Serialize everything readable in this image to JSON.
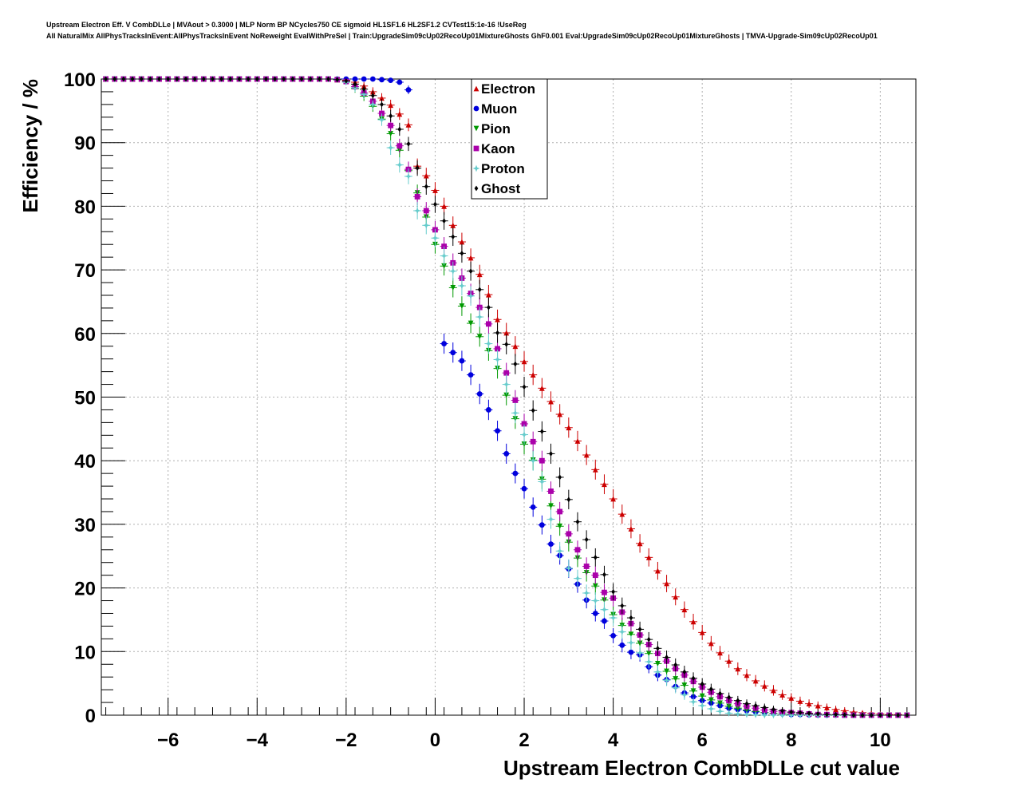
{
  "header": {
    "title_line1": "Upstream Electron Eff. V CombDLLe | MVAout > 0.3000 | MLP Norm BP NCycles750 CE sigmoid HL1SF1.6 HL2SF1.2 CVTest15:1e-16 !UseReg",
    "title_line2": "All NaturalMix AllPhysTracksInEvent:AllPhysTracksInEvent NoReweight EvalWithPreSel | Train:UpgradeSim09cUp02RecoUp01MixtureGhosts GhF0.001 Eval:UpgradeSim09cUp02RecoUp01MixtureGhosts | TMVA-Upgrade-Sim09cUp02RecoUp01"
  },
  "chart_data": {
    "type": "scatter",
    "title": "Upstream Electron Eff. V CombDLLe | MVAout > 0.3000 | MLP Norm BP NCycles750 CE sigmoid HL1SF1.6 HL2SF1.2 CVTest15:1e-16 !UseReg",
    "xlabel": "Upstream Electron CombDLLe cut value",
    "ylabel": "Efficiency / %",
    "xlim": [
      -7.5,
      10.8
    ],
    "ylim": [
      0,
      100
    ],
    "xticks": [
      -6,
      -4,
      -2,
      0,
      2,
      4,
      6,
      8,
      10
    ],
    "xtick_labels": [
      "−6",
      "−4",
      "−2",
      "0",
      "2",
      "4",
      "6",
      "8",
      "10"
    ],
    "yticks": [
      0,
      10,
      20,
      30,
      40,
      50,
      60,
      70,
      80,
      90,
      100
    ],
    "yscale": "linear",
    "grid": true,
    "legend_position": "top-center",
    "x": [
      -7.4,
      -7.2,
      -7.0,
      -6.8,
      -6.6,
      -6.4,
      -6.2,
      -6.0,
      -5.8,
      -5.6,
      -5.4,
      -5.2,
      -5.0,
      -4.8,
      -4.6,
      -4.4,
      -4.2,
      -4.0,
      -3.8,
      -3.6,
      -3.4,
      -3.2,
      -3.0,
      -2.8,
      -2.6,
      -2.4,
      -2.2,
      -2.0,
      -1.8,
      -1.6,
      -1.4,
      -1.2,
      -1.0,
      -0.8,
      -0.6,
      -0.4,
      -0.2,
      0.0,
      0.2,
      0.4,
      0.6,
      0.8,
      1.0,
      1.2,
      1.4,
      1.6,
      1.8,
      2.0,
      2.2,
      2.4,
      2.6,
      2.8,
      3.0,
      3.2,
      3.4,
      3.6,
      3.8,
      4.0,
      4.2,
      4.4,
      4.6,
      4.8,
      5.0,
      5.2,
      5.4,
      5.6,
      5.8,
      6.0,
      6.2,
      6.4,
      6.6,
      6.8,
      7.0,
      7.2,
      7.4,
      7.6,
      7.8,
      8.0,
      8.2,
      8.4,
      8.6,
      8.8,
      9.0,
      9.2,
      9.4,
      9.6,
      9.8,
      10.0,
      10.2,
      10.4,
      10.6
    ],
    "series": [
      {
        "name": "Electron",
        "color": "#cc0000",
        "marker": "triangle-up",
        "values": [
          100,
          100,
          100,
          100,
          100,
          100,
          100,
          100,
          100,
          100,
          100,
          100,
          100,
          100,
          100,
          100,
          100,
          100,
          100,
          100,
          100,
          100,
          100,
          100,
          100,
          100,
          99.9,
          99.8,
          99.5,
          98.9,
          98.0,
          97.0,
          95.9,
          94.5,
          92.8,
          86.3,
          84.8,
          82.5,
          80.0,
          77.0,
          74.4,
          71.9,
          69.3,
          66.1,
          62.2,
          60.1,
          58.0,
          55.6,
          53.5,
          51.4,
          49.3,
          47.3,
          45.2,
          43.1,
          40.9,
          38.6,
          36.3,
          34.0,
          31.6,
          29.3,
          27.0,
          24.8,
          22.7,
          20.7,
          18.6,
          16.6,
          14.7,
          13.0,
          11.3,
          9.8,
          8.5,
          7.3,
          6.3,
          5.4,
          4.6,
          3.9,
          3.2,
          2.7,
          2.2,
          1.8,
          1.5,
          1.2,
          0.9,
          0.7,
          0.5,
          0.4,
          0.3,
          0.2,
          0.1,
          0.1,
          0.0
        ]
      },
      {
        "name": "Muon",
        "color": "#0000dd",
        "marker": "circle",
        "values": [
          100,
          100,
          100,
          100,
          100,
          100,
          100,
          100,
          100,
          100,
          100,
          100,
          100,
          100,
          100,
          100,
          100,
          100,
          100,
          100,
          100,
          100,
          100,
          100,
          100,
          100,
          100,
          100,
          100,
          100,
          100,
          99.9,
          99.8,
          99.5,
          98.3,
          null,
          null,
          null,
          58.4,
          57.0,
          55.7,
          53.5,
          50.5,
          48.0,
          44.7,
          41.1,
          38.0,
          35.6,
          32.7,
          29.9,
          26.9,
          25.1,
          23.0,
          20.6,
          18.1,
          16.0,
          14.8,
          12.5,
          11.0,
          9.9,
          9.5,
          7.6,
          6.3,
          5.6,
          4.5,
          3.5,
          2.9,
          2.3,
          1.9,
          1.5,
          1.1,
          0.9,
          0.7,
          0.5,
          0.4,
          0.3,
          0.2,
          0.1,
          0.1,
          0.05,
          0.0,
          0.0,
          0.0,
          0.0,
          0.0,
          0.0,
          0.0,
          0.0,
          0.0,
          0.0,
          0.0
        ]
      },
      {
        "name": "Pion",
        "color": "#009900",
        "marker": "triangle-down",
        "values": [
          100,
          100,
          100,
          100,
          100,
          100,
          100,
          100,
          100,
          100,
          100,
          100,
          100,
          100,
          100,
          100,
          100,
          100,
          100,
          100,
          100,
          100,
          100,
          100,
          100,
          100,
          99.9,
          99.5,
          98.5,
          97.3,
          95.7,
          93.7,
          91.4,
          88.8,
          85.6,
          82.1,
          78.3,
          74.0,
          70.6,
          67.2,
          64.3,
          61.6,
          59.5,
          57.3,
          54.5,
          50.3,
          46.6,
          42.6,
          40.1,
          37.1,
          32.9,
          29.7,
          27.2,
          24.7,
          22.4,
          20.3,
          18.1,
          15.8,
          14.1,
          12.7,
          11.3,
          9.7,
          8.1,
          6.9,
          5.7,
          4.7,
          3.8,
          3.0,
          2.4,
          1.9,
          1.4,
          1.1,
          0.8,
          0.6,
          0.4,
          0.3,
          0.2,
          0.15,
          0.1,
          0.05,
          0.0,
          0.0,
          0.0,
          0.0,
          0.0,
          0.0,
          0.0,
          0.0,
          0.0,
          0.0,
          0.0
        ]
      },
      {
        "name": "Kaon",
        "color": "#aa00aa",
        "marker": "square",
        "values": [
          100,
          100,
          100,
          100,
          100,
          100,
          100,
          100,
          100,
          100,
          100,
          100,
          100,
          100,
          100,
          100,
          100,
          100,
          100,
          100,
          100,
          100,
          100,
          100,
          100,
          100,
          99.9,
          99.6,
          98.8,
          97.8,
          96.5,
          94.6,
          92.7,
          89.5,
          85.8,
          81.5,
          79.3,
          76.3,
          73.7,
          71.1,
          68.7,
          66.3,
          64.1,
          61.5,
          57.6,
          53.8,
          49.5,
          45.8,
          43.0,
          40.0,
          35.2,
          32.0,
          28.5,
          26.0,
          23.4,
          22.0,
          19.3,
          18.4,
          16.2,
          14.4,
          12.6,
          11.1,
          9.7,
          8.5,
          7.3,
          6.3,
          5.3,
          4.4,
          3.6,
          2.9,
          2.3,
          1.8,
          1.4,
          1.1,
          0.8,
          0.6,
          0.5,
          0.4,
          0.3,
          0.2,
          0.1,
          0.1,
          0.05,
          0.0,
          0.0,
          0.0,
          0.0,
          0.0,
          0.0,
          0.0,
          0.0
        ]
      },
      {
        "name": "Proton",
        "color": "#66cccc",
        "marker": "star",
        "values": [
          100,
          100,
          100,
          100,
          100,
          100,
          100,
          100,
          100,
          100,
          100,
          100,
          100,
          100,
          100,
          100,
          100,
          100,
          100,
          100,
          100,
          100,
          100,
          100,
          100,
          100,
          99.9,
          99.5,
          98.6,
          97.6,
          96.0,
          93.6,
          89.2,
          86.5,
          84.7,
          79.3,
          77.0,
          75.0,
          72.2,
          69.8,
          67.5,
          65.9,
          62.6,
          58.4,
          55.9,
          52.0,
          47.5,
          44.1,
          40.0,
          36.7,
          30.8,
          25.8,
          23.1,
          21.5,
          19.2,
          18.0,
          16.6,
          15.3,
          13.1,
          11.4,
          9.8,
          8.4,
          6.8,
          5.5,
          4.3,
          3.2,
          2.1,
          1.5,
          1.0,
          0.6,
          0.3,
          0.2,
          0.1,
          0.05,
          0.0,
          0.0,
          0.0,
          0.0,
          0.0,
          0.0,
          0.0,
          0.0,
          0.0,
          0.0,
          0.0,
          0.0,
          0.0,
          0.0,
          0.0,
          0.0,
          0.0
        ]
      },
      {
        "name": "Ghost",
        "color": "#000000",
        "marker": "diamond",
        "values": [
          100,
          100,
          100,
          100,
          100,
          100,
          100,
          100,
          100,
          100,
          100,
          100,
          100,
          100,
          100,
          100,
          100,
          100,
          100,
          100,
          100,
          100,
          100,
          100,
          100,
          100,
          99.9,
          99.7,
          99.2,
          98.4,
          97.4,
          96.0,
          94.2,
          92.1,
          89.8,
          86.0,
          83.1,
          80.3,
          77.7,
          75.2,
          72.6,
          69.8,
          66.9,
          64.1,
          60.1,
          58.3,
          55.2,
          51.6,
          47.9,
          44.6,
          41.1,
          37.4,
          33.9,
          30.4,
          27.6,
          24.8,
          22.1,
          19.4,
          17.2,
          15.3,
          13.5,
          11.9,
          10.5,
          9.1,
          7.9,
          6.8,
          5.8,
          4.9,
          4.1,
          3.4,
          2.8,
          2.3,
          1.8,
          1.5,
          1.2,
          0.9,
          0.7,
          0.5,
          0.4,
          0.3,
          0.2,
          0.1,
          0.1,
          0.05,
          0.0,
          0.0,
          0.0,
          0.0,
          0.0,
          0.0,
          0.0
        ]
      }
    ]
  }
}
